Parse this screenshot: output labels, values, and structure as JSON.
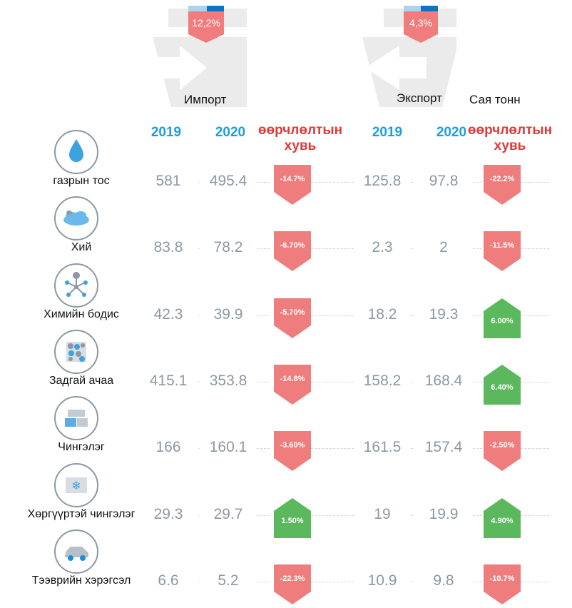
{
  "header": {
    "import_label": "Импорт",
    "export_label": "Экспорт",
    "unit_label": "Сая тонн",
    "import_total_change": "12,2%",
    "export_total_change": "4,3%"
  },
  "columns": {
    "year1": "2019",
    "year2": "2020",
    "change_line1": "өөрчлөлтын",
    "change_line2": "хувь"
  },
  "colors": {
    "down": "#f07d7d",
    "up": "#5cb85c",
    "year": "#1a9ee0",
    "change_title": "#e03a3a"
  },
  "chart_data": {
    "type": "table",
    "unit": "Сая тонн",
    "categories": [
      "газрын тос",
      "Хий",
      "Химийн бодис",
      "Задгай ачаа",
      "Чингэлэг",
      "Хөргүүртэй чингэлэг",
      "Тээврийн хэрэгсэл"
    ],
    "icons": [
      "oil-drop-icon",
      "gas-cloud-icon",
      "chemical-molecule-icon",
      "bulk-cargo-icon",
      "container-icon",
      "refrigerated-container-icon",
      "car-icon"
    ],
    "import": {
      "2019": [
        "581",
        "83.8",
        "42.3",
        "415.1",
        "166",
        "29.3",
        "6.6"
      ],
      "2020": [
        "495.4",
        "78.2",
        "39.9",
        "353.8",
        "160.1",
        "29.7",
        "5.2"
      ],
      "change": [
        "-14.7%",
        "-6.70%",
        "-5.70%",
        "-14.8%",
        "-3.60%",
        "1.50%",
        "-22.3%"
      ],
      "direction": [
        "down",
        "down",
        "down",
        "down",
        "down",
        "up",
        "down"
      ]
    },
    "export": {
      "2019": [
        "125.8",
        "2.3",
        "18.2",
        "158.2",
        "161.5",
        "19",
        "10.9"
      ],
      "2020": [
        "97.8",
        "2",
        "19.3",
        "168.4",
        "157.4",
        "19.9",
        "9.8"
      ],
      "change": [
        "-22.2%",
        "-11.5%",
        "6.00%",
        "6.40%",
        "-2.50%",
        "4.90%",
        "-10.7%"
      ],
      "direction": [
        "down",
        "down",
        "up",
        "up",
        "down",
        "up",
        "down"
      ]
    }
  }
}
